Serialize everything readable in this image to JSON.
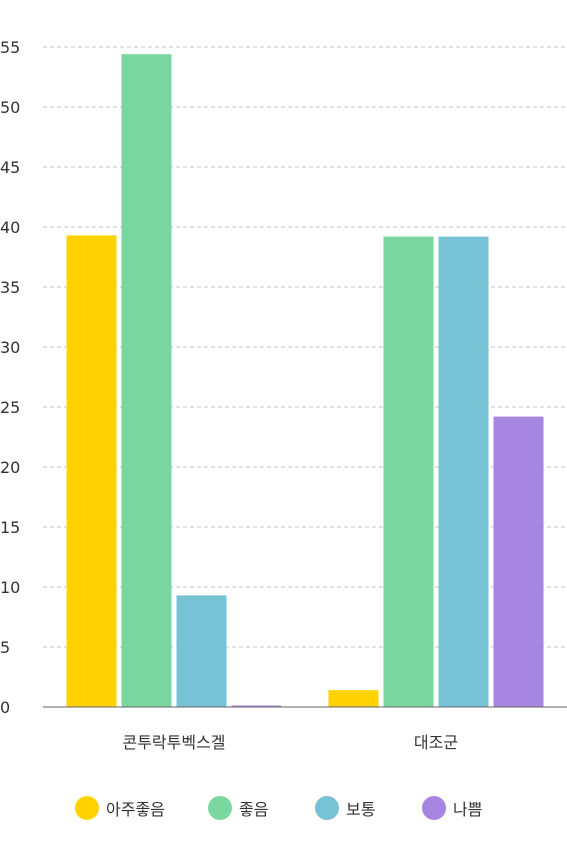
{
  "chart_data": {
    "type": "bar",
    "categories": [
      "콘투락투벡스겔",
      "대조군"
    ],
    "series": [
      {
        "name": "아주좋음",
        "color": "#FFD200",
        "values": [
          39.3,
          1.4
        ]
      },
      {
        "name": "좋음",
        "color": "#79D69E",
        "values": [
          54.4,
          39.2
        ]
      },
      {
        "name": "보통",
        "color": "#77C2D5",
        "values": [
          9.3,
          39.2
        ]
      },
      {
        "name": "나쁨",
        "color": "#A786E1",
        "values": [
          0,
          24.2
        ]
      }
    ],
    "ylim": [
      0,
      55
    ],
    "yticks": [
      "0",
      "5",
      "10",
      "15",
      "20",
      "25",
      "30",
      "35",
      "40",
      "45",
      "50",
      "55"
    ],
    "grid": true,
    "legend_position": "bottom"
  }
}
